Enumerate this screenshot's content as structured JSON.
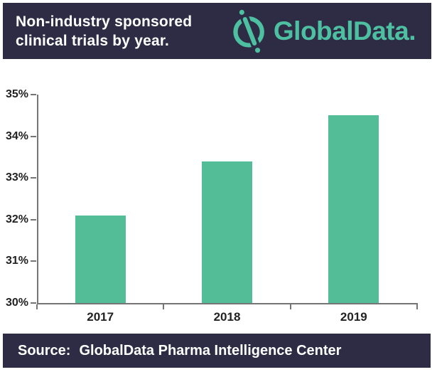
{
  "header": {
    "title_line1": "Non-industry sponsored",
    "title_line2": "clinical trials by year.",
    "logo_text": "GlobalData."
  },
  "footer": {
    "source_label": "Source:",
    "source_text": "GlobalData Pharma Intelligence Center"
  },
  "colors": {
    "banner_bg": "#2E2B45",
    "logo_teal": "#4EC0A2",
    "bar_green": "#52BD96",
    "axis_gray": "#757575",
    "text_dark": "#222222"
  },
  "chart_data": {
    "type": "bar",
    "title": "Non-industry sponsored clinical trials by year",
    "categories": [
      "2017",
      "2018",
      "2019"
    ],
    "values": [
      32.1,
      33.4,
      34.5
    ],
    "unit": "%",
    "ylim": [
      30,
      35
    ],
    "yticks": [
      30,
      31,
      32,
      33,
      34,
      35
    ],
    "ytick_labels": [
      "30%",
      "31%",
      "32%",
      "33%",
      "34%",
      "35%"
    ],
    "xlabel": "",
    "ylabel": "",
    "grid": false,
    "legend_position": "none",
    "bar_color": "#52BD96"
  }
}
